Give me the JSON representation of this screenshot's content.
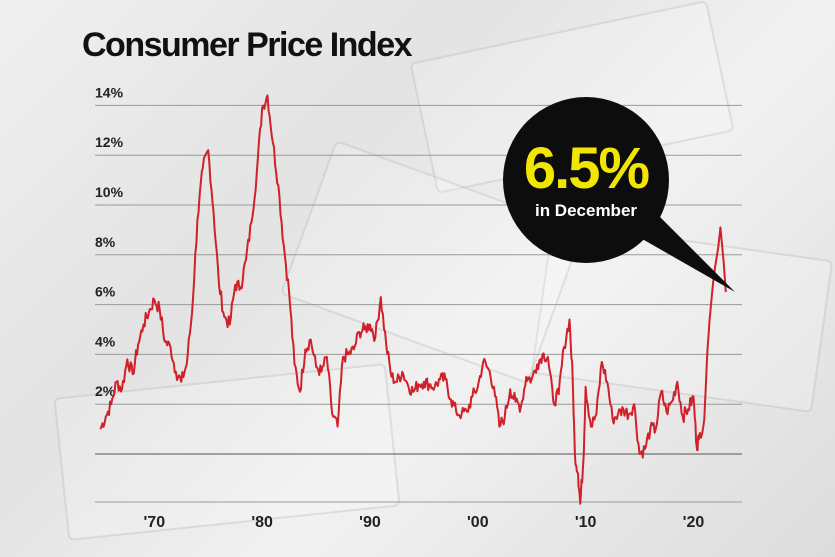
{
  "chart_data": {
    "type": "line",
    "title": "Consumer Price Index",
    "xlabel": "",
    "ylabel": "",
    "xlim": [
      1964.5,
      2024.5
    ],
    "ylim": [
      -2,
      15
    ],
    "yticks": [
      2,
      4,
      6,
      8,
      10,
      12,
      14
    ],
    "ytick_labels": [
      "2%",
      "4%",
      "6%",
      "8%",
      "10%",
      "12%",
      "14%"
    ],
    "baseline": 0,
    "xticks": [
      1970,
      1980,
      1990,
      2000,
      2010,
      2020
    ],
    "xtick_labels": [
      "'70",
      "'80",
      "'90",
      "'00",
      "'10",
      "'20"
    ],
    "grid": "horizontal",
    "line_color": "#d0202a",
    "series": [
      {
        "values": [
          [
            1965.0,
            1.0
          ],
          [
            1965.5,
            1.5
          ],
          [
            1966.0,
            2.0
          ],
          [
            1966.5,
            2.9
          ],
          [
            1967.0,
            2.6
          ],
          [
            1967.5,
            3.8
          ],
          [
            1968.0,
            3.2
          ],
          [
            1968.5,
            4.4
          ],
          [
            1969.0,
            5.2
          ],
          [
            1969.5,
            5.7
          ],
          [
            1970.0,
            6.2
          ],
          [
            1970.5,
            5.8
          ],
          [
            1971.0,
            4.5
          ],
          [
            1971.5,
            4.3
          ],
          [
            1972.0,
            3.3
          ],
          [
            1972.5,
            2.9
          ],
          [
            1973.0,
            3.6
          ],
          [
            1973.5,
            5.7
          ],
          [
            1974.0,
            9.4
          ],
          [
            1974.5,
            11.5
          ],
          [
            1975.0,
            12.2
          ],
          [
            1975.5,
            9.7
          ],
          [
            1976.0,
            6.8
          ],
          [
            1976.5,
            5.5
          ],
          [
            1977.0,
            5.2
          ],
          [
            1977.5,
            6.8
          ],
          [
            1978.0,
            6.7
          ],
          [
            1978.5,
            7.8
          ],
          [
            1979.0,
            9.3
          ],
          [
            1979.5,
            11.3
          ],
          [
            1980.0,
            13.9
          ],
          [
            1980.5,
            14.4
          ],
          [
            1981.0,
            12.5
          ],
          [
            1981.5,
            10.8
          ],
          [
            1982.0,
            8.4
          ],
          [
            1982.5,
            6.5
          ],
          [
            1983.0,
            3.6
          ],
          [
            1983.5,
            2.5
          ],
          [
            1984.0,
            4.2
          ],
          [
            1984.5,
            4.6
          ],
          [
            1985.0,
            3.5
          ],
          [
            1985.5,
            3.3
          ],
          [
            1986.0,
            3.9
          ],
          [
            1986.5,
            1.6
          ],
          [
            1987.0,
            1.1
          ],
          [
            1987.5,
            3.9
          ],
          [
            1988.0,
            4.0
          ],
          [
            1988.5,
            4.2
          ],
          [
            1989.0,
            4.9
          ],
          [
            1989.5,
            5.0
          ],
          [
            1990.0,
            5.2
          ],
          [
            1990.5,
            4.7
          ],
          [
            1991.0,
            6.3
          ],
          [
            1991.5,
            4.4
          ],
          [
            1992.0,
            3.1
          ],
          [
            1992.5,
            2.9
          ],
          [
            1993.0,
            3.3
          ],
          [
            1993.5,
            2.8
          ],
          [
            1994.0,
            2.5
          ],
          [
            1994.5,
            2.8
          ],
          [
            1995.0,
            2.9
          ],
          [
            1995.5,
            2.8
          ],
          [
            1996.0,
            2.7
          ],
          [
            1996.5,
            3.0
          ],
          [
            1997.0,
            3.0
          ],
          [
            1997.5,
            2.2
          ],
          [
            1998.0,
            1.7
          ],
          [
            1998.5,
            1.6
          ],
          [
            1999.0,
            1.7
          ],
          [
            1999.5,
            2.3
          ],
          [
            2000.0,
            2.7
          ],
          [
            2000.5,
            3.7
          ],
          [
            2001.0,
            3.4
          ],
          [
            2001.5,
            2.7
          ],
          [
            2002.0,
            1.1
          ],
          [
            2002.5,
            1.5
          ],
          [
            2003.0,
            2.6
          ],
          [
            2003.5,
            2.1
          ],
          [
            2004.0,
            1.9
          ],
          [
            2004.5,
            3.1
          ],
          [
            2005.0,
            3.0
          ],
          [
            2005.5,
            3.6
          ],
          [
            2006.0,
            4.0
          ],
          [
            2006.5,
            3.9
          ],
          [
            2007.0,
            2.1
          ],
          [
            2007.5,
            2.4
          ],
          [
            2008.0,
            4.3
          ],
          [
            2008.5,
            5.4
          ],
          [
            2008.8,
            3.0
          ],
          [
            2009.0,
            0.0
          ],
          [
            2009.3,
            -0.8
          ],
          [
            2009.5,
            -2.0
          ],
          [
            2009.8,
            -0.2
          ],
          [
            2010.0,
            2.7
          ],
          [
            2010.5,
            1.1
          ],
          [
            2011.0,
            1.6
          ],
          [
            2011.5,
            3.7
          ],
          [
            2012.0,
            2.9
          ],
          [
            2012.5,
            1.4
          ],
          [
            2013.0,
            1.6
          ],
          [
            2013.5,
            1.8
          ],
          [
            2014.0,
            1.6
          ],
          [
            2014.5,
            2.0
          ],
          [
            2015.0,
            0.0
          ],
          [
            2015.5,
            0.2
          ],
          [
            2016.0,
            1.0
          ],
          [
            2016.5,
            1.0
          ],
          [
            2017.0,
            2.5
          ],
          [
            2017.5,
            1.7
          ],
          [
            2018.0,
            2.1
          ],
          [
            2018.5,
            2.9
          ],
          [
            2019.0,
            1.5
          ],
          [
            2019.5,
            1.8
          ],
          [
            2020.0,
            2.3
          ],
          [
            2020.3,
            0.3
          ],
          [
            2020.5,
            0.6
          ],
          [
            2021.0,
            1.4
          ],
          [
            2021.3,
            4.2
          ],
          [
            2021.5,
            5.4
          ],
          [
            2021.8,
            6.8
          ],
          [
            2022.0,
            7.5
          ],
          [
            2022.3,
            8.3
          ],
          [
            2022.5,
            9.1
          ],
          [
            2022.8,
            7.7
          ],
          [
            2023.0,
            6.5
          ]
        ]
      }
    ],
    "callout": {
      "value": "6.5%",
      "label": "in December"
    }
  }
}
